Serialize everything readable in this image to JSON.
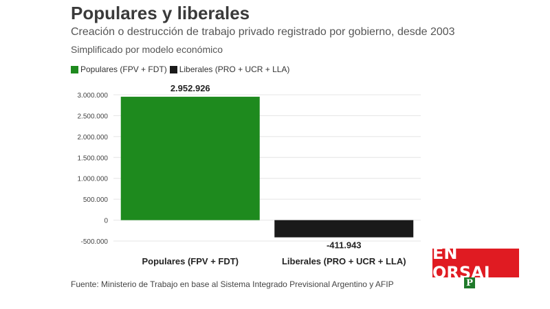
{
  "header": {
    "title": "Populares y liberales",
    "subtitle": "Creación o destrucción de trabajo privado registrado por gobierno, desde 2003",
    "note": "Simplificado por modelo económico"
  },
  "legend": [
    {
      "label": "Populares (FPV + FDT)",
      "color": "#1e8a1e"
    },
    {
      "label": "Liberales (PRO + UCR + LLA)",
      "color": "#1a1a1a"
    }
  ],
  "source": "Fuente: Ministerio de Trabajo en base al Sistema Integrado Previsional Argentino y AFIP",
  "logo": {
    "text": "EN ORSAI",
    "badge": "P",
    "color": "#e01b22",
    "badge_color": "#1f7a2a"
  },
  "chart_data": {
    "type": "bar",
    "categories": [
      "Populares (FPV + FDT)",
      "Liberales (PRO + UCR + LLA)"
    ],
    "values": [
      2952926,
      -411943
    ],
    "value_labels": [
      "2.952.926",
      "-411.943"
    ],
    "colors": [
      "#1e8a1e",
      "#1a1a1a"
    ],
    "ylim": [
      -500000,
      3000000
    ],
    "yticks": [
      3000000,
      2500000,
      2000000,
      1500000,
      1000000,
      500000,
      0,
      -500000
    ],
    "ytick_labels": [
      "3.000.000",
      "2.500.000",
      "2.000.000",
      "1.500.000",
      "1.000.000",
      "500.000",
      "0",
      "-500.000"
    ],
    "grid": true,
    "legend_position": "top-left"
  }
}
